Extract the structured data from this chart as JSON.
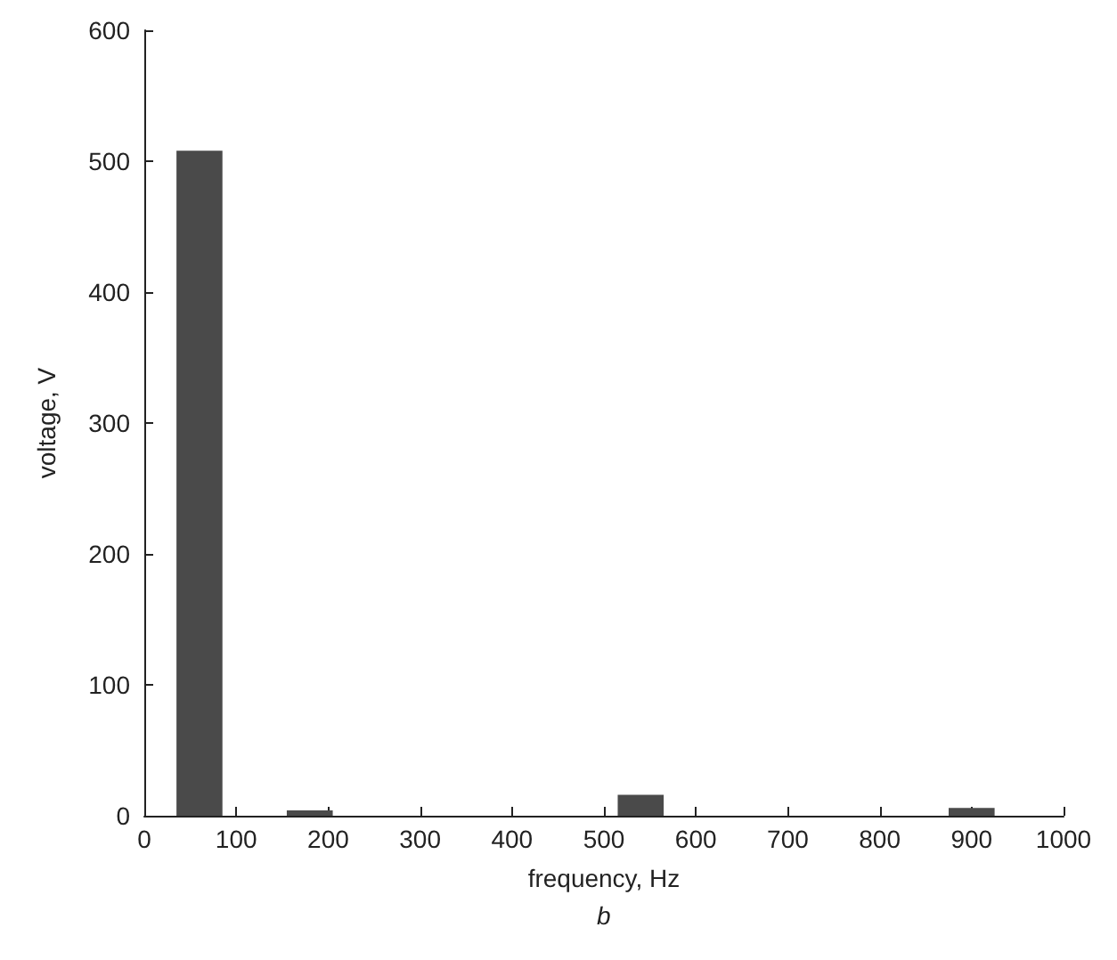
{
  "chart_data": {
    "type": "bar",
    "xlabel": "frequency, Hz",
    "ylabel": "voltage, V",
    "annotations": [
      "b"
    ],
    "x": [
      60,
      180,
      540,
      900
    ],
    "values": [
      508,
      4,
      16,
      6
    ],
    "color": "#4a4a4a",
    "xlim": [
      0,
      1000
    ],
    "xticks": [
      0,
      100,
      200,
      300,
      400,
      500,
      600,
      700,
      800,
      900,
      1000
    ],
    "ylim": [
      0,
      600
    ],
    "yticks": [
      0,
      100,
      200,
      300,
      400,
      500,
      600
    ],
    "grid": false
  }
}
